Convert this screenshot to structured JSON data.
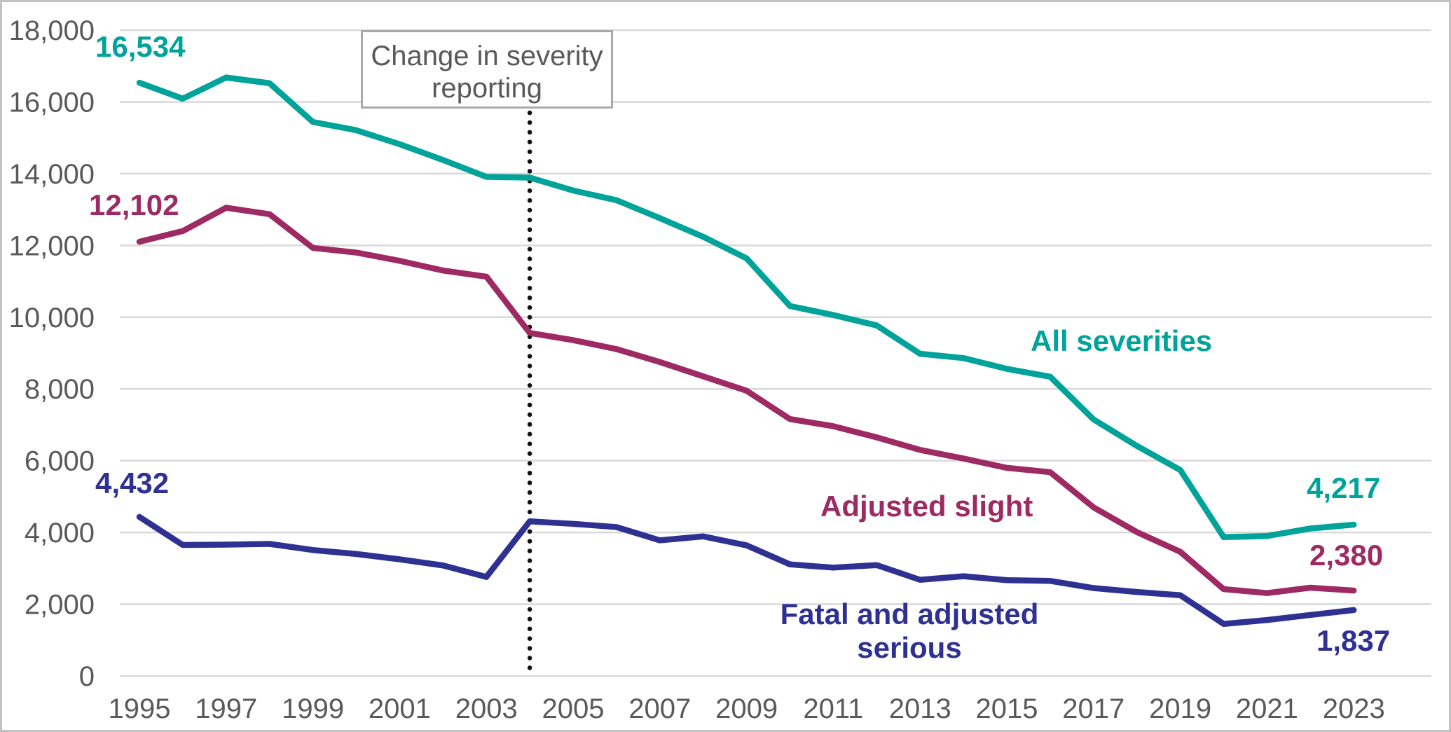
{
  "colors": {
    "all_severities": "#00A39A",
    "adjusted_slight": "#9E2A63",
    "fatal_serious": "#2E3192",
    "axis_text": "#595959",
    "gridline": "#D9D9D9",
    "annotation_border": "#A9A9A9",
    "dotted_line": "#111111"
  },
  "labels": {
    "start_all": "16,534",
    "start_slight": "12,102",
    "start_fatal": "4,432",
    "end_all": "4,217",
    "end_slight": "2,380",
    "end_fatal": "1,837",
    "series_all": "All severities",
    "series_slight": "Adjusted slight",
    "series_fatal_line1": "Fatal and adjusted",
    "series_fatal_line2": "serious",
    "annotation_line1": "Change in severity",
    "annotation_line2": "reporting"
  },
  "chart_data": {
    "type": "line",
    "title": "",
    "xlabel": "",
    "ylabel": "",
    "grid": "horizontal",
    "legend_position": "inline-labels",
    "x": [
      1995,
      1996,
      1997,
      1998,
      1999,
      2000,
      2001,
      2002,
      2003,
      2004,
      2005,
      2006,
      2007,
      2008,
      2009,
      2010,
      2011,
      2012,
      2013,
      2014,
      2015,
      2016,
      2017,
      2018,
      2019,
      2020,
      2021,
      2022,
      2023
    ],
    "series": [
      {
        "name": "All severities",
        "color": "#00A39A",
        "values": [
          16534,
          16090,
          16680,
          16520,
          15440,
          15210,
          14820,
          14380,
          13910,
          13890,
          13530,
          13260,
          12760,
          12240,
          11640,
          10310,
          10060,
          9770,
          8980,
          8860,
          8560,
          8340,
          7150,
          6410,
          5740,
          3870,
          3900,
          4110,
          4217
        ]
      },
      {
        "name": "Adjusted slight",
        "color": "#9E2A63",
        "values": [
          12102,
          12400,
          13050,
          12870,
          11930,
          11800,
          11570,
          11300,
          11130,
          9560,
          9360,
          9110,
          8750,
          8350,
          7950,
          7160,
          6960,
          6650,
          6300,
          6060,
          5800,
          5680,
          4700,
          4010,
          3460,
          2420,
          2310,
          2460,
          2380
        ]
      },
      {
        "name": "Fatal and adjusted serious",
        "color": "#2E3192",
        "values": [
          4432,
          3650,
          3660,
          3680,
          3510,
          3400,
          3250,
          3080,
          2760,
          4310,
          4240,
          4150,
          3780,
          3890,
          3640,
          3110,
          3020,
          3090,
          2680,
          2780,
          2670,
          2650,
          2450,
          2340,
          2250,
          1450,
          1560,
          1700,
          1837
        ]
      }
    ],
    "y_axis": {
      "min": 0,
      "max": 18000,
      "step": 2000,
      "tick_labels": [
        "0",
        "2,000",
        "4,000",
        "6,000",
        "8,000",
        "10,000",
        "12,000",
        "14,000",
        "16,000",
        "18,000"
      ]
    },
    "x_axis": {
      "tick_years": [
        1995,
        1997,
        1999,
        2001,
        2003,
        2005,
        2007,
        2009,
        2011,
        2013,
        2015,
        2017,
        2019,
        2021,
        2023
      ]
    },
    "annotation": {
      "text": "Change in severity reporting",
      "at_year": 2004
    }
  }
}
